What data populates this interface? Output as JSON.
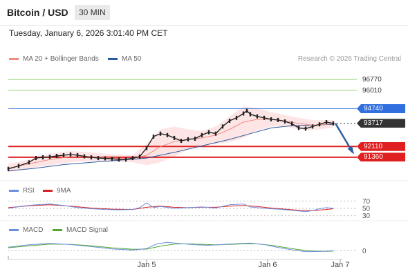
{
  "header": {
    "title": "Bitcoin / USD",
    "timeframe": "30 MIN"
  },
  "datetime": "Tuesday, January 6, 2026 3:01:40 PM CET",
  "legend": {
    "ma20": "MA 20 + Bollinger Bands",
    "ma50": "MA 50",
    "credit": "Research © 2026 Trading Central",
    "rsi": "RSI",
    "ma9": "9MA",
    "macd": "MACD",
    "macd_signal": "MACD Signal"
  },
  "colors": {
    "ma20": "#f28b82",
    "ma50": "#2c5aa0",
    "band_fill": "#fde0e0",
    "green_level": "#9fd67a",
    "blue_level": "#4a86e8",
    "red_level": "#e02020",
    "current_label": "#333333",
    "arrow": "#2d5fa0",
    "rsi": "#6a8ee0",
    "rsi_ma": "#d92020",
    "macd": "#6a8ee0",
    "macd_signal": "#55a630"
  },
  "price_levels": [
    {
      "value": 96770,
      "label": "96770",
      "kind": "resistance",
      "color": "#9fd67a",
      "label_bg": "#ffffff",
      "label_color": "#333333"
    },
    {
      "value": 96010,
      "label": "96010",
      "kind": "resistance",
      "color": "#9fd67a",
      "label_bg": "#ffffff",
      "label_color": "#333333"
    },
    {
      "value": 94740,
      "label": "94740",
      "kind": "pivot",
      "color": "#4a86e8",
      "label_bg": "#2f6fdf",
      "label_color": "#ffffff"
    },
    {
      "value": 93717,
      "label": "93717",
      "kind": "current",
      "color": "#333333",
      "label_bg": "#333333",
      "label_color": "#ffffff"
    },
    {
      "value": 92110,
      "label": "92110",
      "kind": "support",
      "color": "#e02020",
      "label_bg": "#e02020",
      "label_color": "#ffffff"
    },
    {
      "value": 91360,
      "label": "91360",
      "kind": "support",
      "color": "#e02020",
      "label_bg": "#e02020",
      "label_color": "#ffffff"
    }
  ],
  "x_axis": {
    "ticks": [
      "Jan 5",
      "Jan 6",
      "Jan 7"
    ]
  },
  "rsi_axis": {
    "ticks": [
      "70",
      "50",
      "30"
    ]
  },
  "macd_axis": {
    "ticks": [
      "0"
    ]
  },
  "chart_data": {
    "type": "line",
    "x_range": [
      0,
      100
    ],
    "y_range": [
      90200,
      97500
    ],
    "x_ticks": [
      {
        "x": 40,
        "label": "Jan 5"
      },
      {
        "x": 75,
        "label": "Jan 6"
      },
      {
        "x": 96,
        "label": "Jan 7"
      }
    ],
    "price": [
      [
        0,
        90550
      ],
      [
        3,
        90750
      ],
      [
        6,
        91000
      ],
      [
        8,
        91300
      ],
      [
        10,
        91350
      ],
      [
        12,
        91380
      ],
      [
        14,
        91450
      ],
      [
        16,
        91500
      ],
      [
        18,
        91550
      ],
      [
        20,
        91500
      ],
      [
        22,
        91420
      ],
      [
        24,
        91350
      ],
      [
        26,
        91300
      ],
      [
        28,
        91280
      ],
      [
        30,
        91250
      ],
      [
        32,
        91200
      ],
      [
        34,
        91200
      ],
      [
        36,
        91300
      ],
      [
        38,
        91400
      ],
      [
        40,
        92000
      ],
      [
        42,
        92800
      ],
      [
        44,
        93000
      ],
      [
        46,
        92900
      ],
      [
        48,
        92700
      ],
      [
        50,
        92500
      ],
      [
        52,
        92600
      ],
      [
        54,
        92650
      ],
      [
        56,
        92900
      ],
      [
        58,
        93100
      ],
      [
        60,
        93000
      ],
      [
        62,
        93500
      ],
      [
        64,
        93900
      ],
      [
        66,
        94100
      ],
      [
        68,
        94400
      ],
      [
        69,
        94600
      ],
      [
        70,
        94350
      ],
      [
        72,
        94200
      ],
      [
        74,
        94100
      ],
      [
        76,
        94000
      ],
      [
        78,
        93950
      ],
      [
        80,
        93850
      ],
      [
        82,
        93700
      ],
      [
        84,
        93400
      ],
      [
        86,
        93350
      ],
      [
        88,
        93500
      ],
      [
        90,
        93650
      ],
      [
        92,
        93800
      ],
      [
        94,
        93717
      ]
    ],
    "ma20": [
      [
        0,
        90600
      ],
      [
        6,
        90900
      ],
      [
        12,
        91200
      ],
      [
        18,
        91400
      ],
      [
        24,
        91400
      ],
      [
        30,
        91300
      ],
      [
        36,
        91250
      ],
      [
        40,
        91500
      ],
      [
        44,
        92100
      ],
      [
        48,
        92450
      ],
      [
        52,
        92600
      ],
      [
        56,
        92700
      ],
      [
        60,
        92900
      ],
      [
        64,
        93300
      ],
      [
        68,
        93800
      ],
      [
        72,
        94000
      ],
      [
        76,
        94000
      ],
      [
        80,
        93900
      ],
      [
        84,
        93700
      ],
      [
        88,
        93600
      ],
      [
        92,
        93650
      ],
      [
        94,
        93700
      ]
    ],
    "ma50": [
      [
        0,
        90400
      ],
      [
        8,
        90600
      ],
      [
        16,
        90850
      ],
      [
        24,
        91000
      ],
      [
        32,
        91150
      ],
      [
        40,
        91300
      ],
      [
        48,
        91700
      ],
      [
        56,
        92150
      ],
      [
        64,
        92600
      ],
      [
        70,
        93000
      ],
      [
        76,
        93400
      ],
      [
        82,
        93550
      ],
      [
        88,
        93600
      ],
      [
        94,
        93650
      ]
    ],
    "bb_upper": [
      [
        0,
        90900
      ],
      [
        6,
        91200
      ],
      [
        12,
        91600
      ],
      [
        18,
        91800
      ],
      [
        24,
        91700
      ],
      [
        30,
        91550
      ],
      [
        36,
        91500
      ],
      [
        40,
        92300
      ],
      [
        44,
        93300
      ],
      [
        48,
        93500
      ],
      [
        52,
        93300
      ],
      [
        56,
        93200
      ],
      [
        60,
        93500
      ],
      [
        64,
        94200
      ],
      [
        68,
        94900
      ],
      [
        72,
        94800
      ],
      [
        76,
        94500
      ],
      [
        80,
        94300
      ],
      [
        84,
        94100
      ],
      [
        88,
        93950
      ],
      [
        92,
        93950
      ],
      [
        94,
        93950
      ]
    ],
    "bb_lower": [
      [
        0,
        90300
      ],
      [
        6,
        90600
      ],
      [
        12,
        90800
      ],
      [
        18,
        91000
      ],
      [
        24,
        91100
      ],
      [
        30,
        91050
      ],
      [
        36,
        91000
      ],
      [
        40,
        90800
      ],
      [
        44,
        91000
      ],
      [
        48,
        91400
      ],
      [
        52,
        91900
      ],
      [
        56,
        92200
      ],
      [
        60,
        92300
      ],
      [
        64,
        92400
      ],
      [
        68,
        92700
      ],
      [
        72,
        93200
      ],
      [
        76,
        93500
      ],
      [
        80,
        93500
      ],
      [
        84,
        93300
      ],
      [
        88,
        93250
      ],
      [
        92,
        93350
      ],
      [
        94,
        93450
      ]
    ],
    "forecast_arrow": {
      "from": [
        94,
        93717
      ],
      "to": [
        100,
        91700
      ]
    },
    "rsi": {
      "y_range": [
        20,
        80
      ],
      "ticks": [
        70,
        50,
        30
      ],
      "rsi": [
        [
          0,
          50
        ],
        [
          4,
          56
        ],
        [
          8,
          60
        ],
        [
          12,
          62
        ],
        [
          16,
          58
        ],
        [
          20,
          52
        ],
        [
          24,
          49
        ],
        [
          28,
          47
        ],
        [
          32,
          46
        ],
        [
          36,
          47
        ],
        [
          38,
          52
        ],
        [
          40,
          65
        ],
        [
          42,
          52
        ],
        [
          44,
          55
        ],
        [
          48,
          50
        ],
        [
          52,
          52
        ],
        [
          56,
          54
        ],
        [
          60,
          51
        ],
        [
          64,
          60
        ],
        [
          68,
          62
        ],
        [
          70,
          54
        ],
        [
          74,
          50
        ],
        [
          78,
          48
        ],
        [
          82,
          45
        ],
        [
          86,
          41
        ],
        [
          88,
          44
        ],
        [
          90,
          49
        ],
        [
          92,
          52
        ],
        [
          94,
          50
        ]
      ],
      "ma9": [
        [
          0,
          52
        ],
        [
          6,
          57
        ],
        [
          12,
          60
        ],
        [
          18,
          56
        ],
        [
          24,
          51
        ],
        [
          30,
          48
        ],
        [
          36,
          47
        ],
        [
          40,
          53
        ],
        [
          44,
          56
        ],
        [
          48,
          53
        ],
        [
          52,
          52
        ],
        [
          56,
          53
        ],
        [
          60,
          53
        ],
        [
          64,
          56
        ],
        [
          68,
          58
        ],
        [
          72,
          55
        ],
        [
          76,
          51
        ],
        [
          80,
          48
        ],
        [
          84,
          45
        ],
        [
          88,
          44
        ],
        [
          92,
          47
        ],
        [
          94,
          49
        ]
      ]
    },
    "macd": {
      "y_range": [
        -500,
        1300
      ],
      "macd": [
        [
          0,
          300
        ],
        [
          6,
          500
        ],
        [
          12,
          620
        ],
        [
          18,
          520
        ],
        [
          24,
          350
        ],
        [
          30,
          150
        ],
        [
          36,
          60
        ],
        [
          40,
          180
        ],
        [
          43,
          580
        ],
        [
          46,
          700
        ],
        [
          50,
          600
        ],
        [
          54,
          500
        ],
        [
          58,
          460
        ],
        [
          62,
          520
        ],
        [
          66,
          600
        ],
        [
          70,
          640
        ],
        [
          74,
          520
        ],
        [
          78,
          280
        ],
        [
          82,
          80
        ],
        [
          86,
          -80
        ],
        [
          90,
          -60
        ],
        [
          94,
          0
        ]
      ],
      "signal": [
        [
          0,
          250
        ],
        [
          6,
          420
        ],
        [
          12,
          560
        ],
        [
          18,
          540
        ],
        [
          24,
          420
        ],
        [
          30,
          250
        ],
        [
          36,
          120
        ],
        [
          40,
          140
        ],
        [
          44,
          380
        ],
        [
          48,
          560
        ],
        [
          52,
          580
        ],
        [
          56,
          540
        ],
        [
          60,
          500
        ],
        [
          64,
          530
        ],
        [
          68,
          580
        ],
        [
          72,
          580
        ],
        [
          76,
          460
        ],
        [
          80,
          280
        ],
        [
          84,
          100
        ],
        [
          88,
          -30
        ],
        [
          92,
          -50
        ],
        [
          94,
          -30
        ]
      ]
    }
  }
}
